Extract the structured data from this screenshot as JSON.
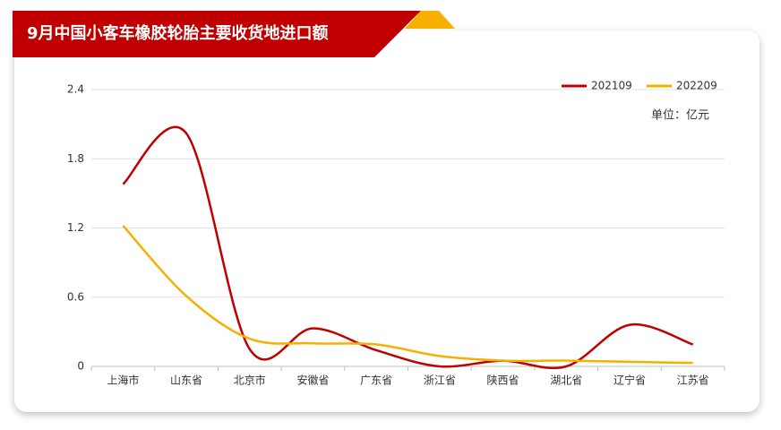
{
  "chart_data": {
    "type": "line",
    "title": "9月中国小客车橡胶轮胎主要收货地进口额",
    "unit_label": "单位：亿元",
    "categories": [
      "上海市",
      "山东省",
      "北京市",
      "安徽省",
      "广东省",
      "浙江省",
      "陕西省",
      "湖北省",
      "辽宁省",
      "江苏省"
    ],
    "series": [
      {
        "name": "202109",
        "color": "#c00000",
        "values": [
          1.58,
          2.02,
          0.15,
          0.33,
          0.14,
          0.0,
          0.05,
          0.0,
          0.36,
          0.19
        ]
      },
      {
        "name": "202209",
        "color": "#f5b000",
        "values": [
          1.22,
          0.61,
          0.24,
          0.2,
          0.19,
          0.09,
          0.05,
          0.05,
          0.04,
          0.03
        ]
      }
    ],
    "ylim": [
      0,
      2.4
    ],
    "yticks": [
      0,
      0.6,
      1.2,
      1.8,
      2.4
    ],
    "grid": true,
    "smooth": true,
    "legend": "top-right"
  }
}
